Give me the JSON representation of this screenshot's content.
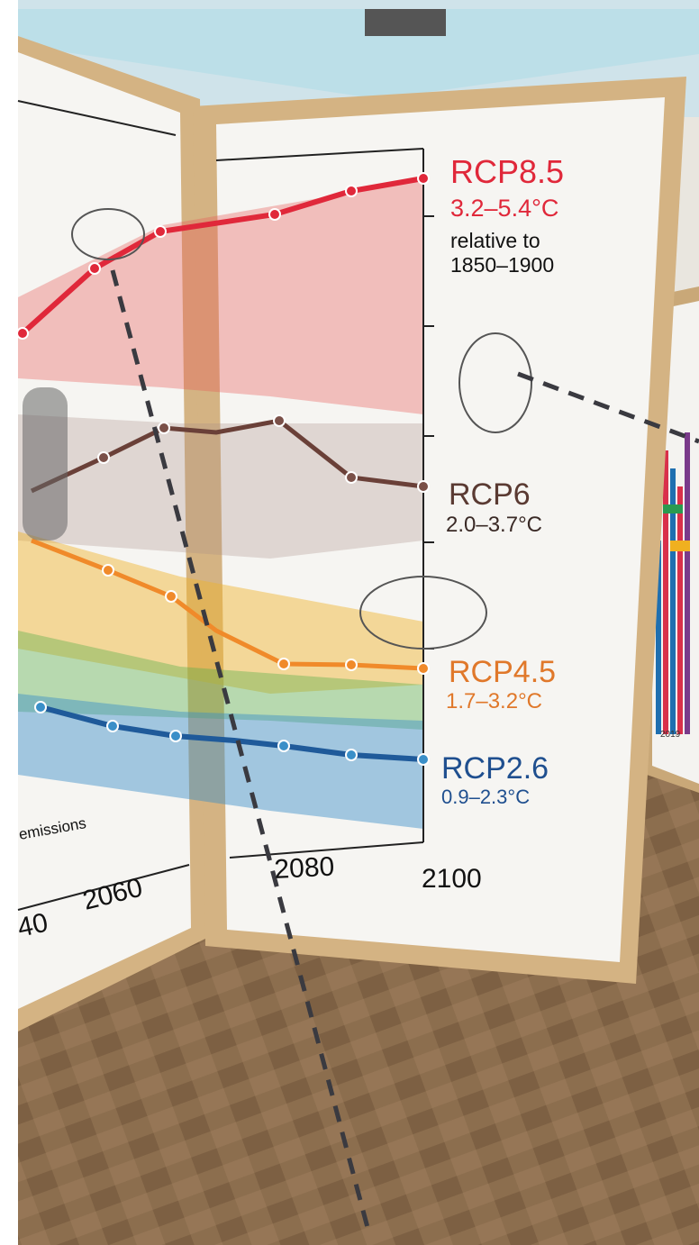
{
  "panel": {
    "scenarios": [
      {
        "name": "RCP8.5",
        "range": "3.2–5.4°C"
      },
      {
        "name": "RCP6",
        "range": "2.0–3.7°C"
      },
      {
        "name": "RCP4.5",
        "range": "1.7–3.2°C"
      },
      {
        "name": "RCP2.6",
        "range": "0.9–2.3°C"
      }
    ],
    "reference": [
      "relative to",
      "1850–1900"
    ],
    "x_axis_labels": [
      "40",
      "2060",
      "2080",
      "2100"
    ],
    "caption_fragment": "emissions"
  },
  "side_panel": {
    "year": "2019"
  }
}
